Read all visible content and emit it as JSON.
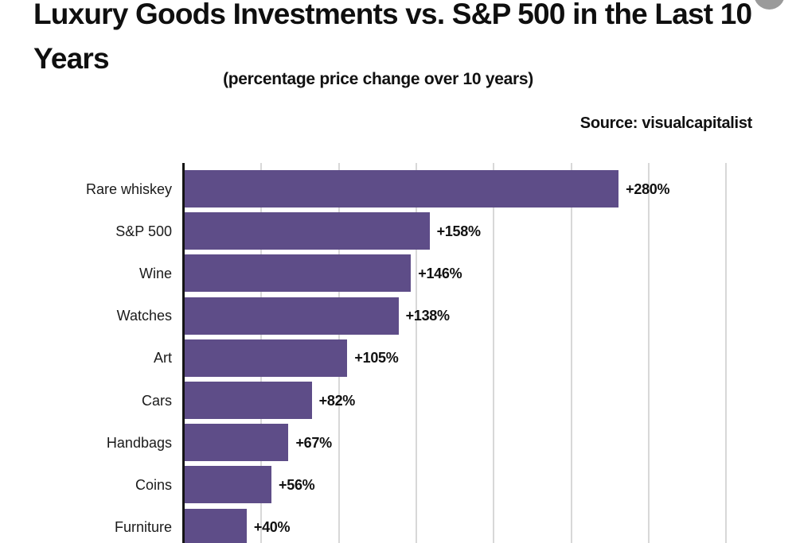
{
  "header": {
    "title_lines": [
      "Luxury Goods Investments vs. S&P 500 in the Last 10",
      "Years"
    ],
    "subtitle": "(percentage price change over 10 years)",
    "source": "Source: visualcapitalist"
  },
  "colors": {
    "bar": "#5e4d88",
    "axis": "#151515",
    "gridline": "#d8d8d8",
    "text": "#111111",
    "background": "#ffffff",
    "watermark_circle": "#9a9a9a"
  },
  "chart_data": {
    "type": "bar",
    "orientation": "horizontal",
    "title": "Luxury Goods Investments vs. S&P 500 in the Last 10 Years",
    "subtitle": "(percentage price change over 10 years)",
    "source": "Source: visualcapitalist",
    "categories": [
      "Rare whiskey",
      "S&P 500",
      "Wine",
      "Watches",
      "Art",
      "Cars",
      "Handbags",
      "Coins",
      "Furniture"
    ],
    "values": [
      280,
      158,
      146,
      138,
      105,
      82,
      67,
      56,
      40
    ],
    "value_labels": [
      "+280%",
      "+158%",
      "+146%",
      "+138%",
      "+105%",
      "+82%",
      "+67%",
      "+56%",
      "+40%"
    ],
    "xlabel": "",
    "ylabel": "",
    "xlim": [
      0,
      350
    ],
    "gridline_step": 50,
    "grid": true,
    "legend": false,
    "bar_color": "#5e4d88"
  }
}
